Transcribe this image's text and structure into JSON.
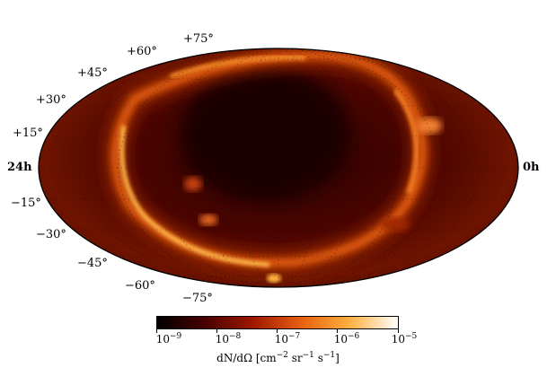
{
  "map": {
    "lat_labels": [
      "+75°",
      "+60°",
      "+45°",
      "+30°",
      "+15°",
      "−15°",
      "−30°",
      "−45°",
      "−60°",
      "−75°"
    ],
    "ra_left": "24h",
    "ra_right": "0h"
  },
  "colorbar": {
    "scale": "log",
    "tick_labels": [
      "10",
      "10",
      "10",
      "10",
      "10"
    ],
    "tick_exponents": [
      "−9",
      "−8",
      "−7",
      "−6",
      "−5"
    ],
    "colors": [
      "#000000",
      "#4a0000",
      "#a01800",
      "#e86010",
      "#ffb040",
      "#ffffff"
    ],
    "title_prefix": "dN/dΩ [cm",
    "title_e1": "−2",
    "title_mid": " sr",
    "title_e2": "−1",
    "title_mid2": " s",
    "title_e3": "−1",
    "title_suffix": "]"
  }
}
